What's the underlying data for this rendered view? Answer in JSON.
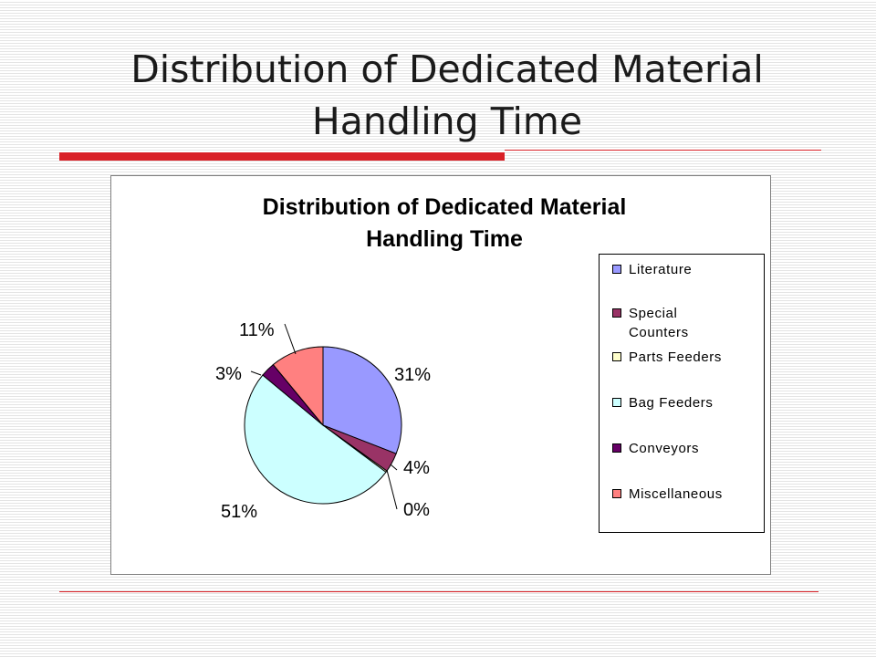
{
  "slide": {
    "title_line1": "Distribution of Dedicated Material",
    "title_line2": "Handling Time"
  },
  "colors": {
    "accent_rule": "#d91f26"
  },
  "chart_data": {
    "type": "pie",
    "title_line1": "Distribution of Dedicated Material",
    "title_line2": "Handling Time",
    "legend_position": "right",
    "slices": [
      {
        "label": "Literature",
        "label_lines": [
          "Literature"
        ],
        "value": 31,
        "pct_label": "31%",
        "color": "#9999ff"
      },
      {
        "label": "Special Counters",
        "label_lines": [
          "Special",
          "Counters"
        ],
        "value": 4,
        "pct_label": "4%",
        "color": "#993366"
      },
      {
        "label": "Parts Feeders",
        "label_lines": [
          "Parts Feeders"
        ],
        "value": 0.3,
        "pct_label": "0%",
        "color": "#ffffcc"
      },
      {
        "label": "Bag Feeders",
        "label_lines": [
          "Bag Feeders"
        ],
        "value": 51,
        "pct_label": "51%",
        "color": "#ccffff"
      },
      {
        "label": "Conveyors",
        "label_lines": [
          "Conveyors"
        ],
        "value": 3,
        "pct_label": "3%",
        "color": "#660066"
      },
      {
        "label": "Miscellaneous",
        "label_lines": [
          "Miscellaneous"
        ],
        "value": 11,
        "pct_label": "11%",
        "color": "#ff8080"
      }
    ]
  }
}
